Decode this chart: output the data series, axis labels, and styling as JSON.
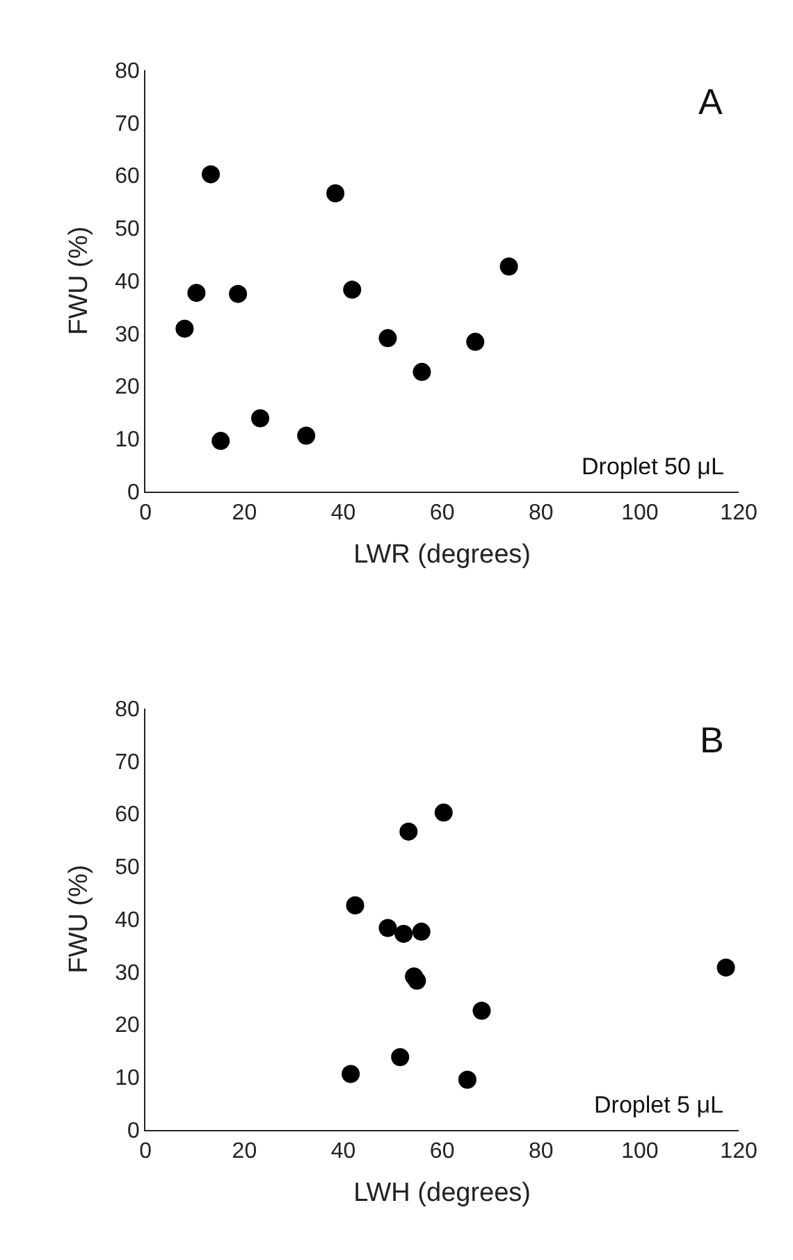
{
  "chart_data": [
    {
      "type": "scatter",
      "xlabel": "LWR (degrees)",
      "ylabel": "FWU (%)",
      "annotations": [
        "A",
        "Droplet 50 μL"
      ],
      "xlim": [
        0,
        120
      ],
      "xticks": [
        0,
        20,
        40,
        60,
        80,
        100,
        120
      ],
      "ylim": [
        0,
        80
      ],
      "yticks": [
        0,
        10,
        20,
        30,
        40,
        50,
        60,
        70,
        80
      ],
      "marker": "circle",
      "series": [
        {
          "color": "#000000",
          "x": [
            7.9,
            10.3,
            13.2,
            15.2,
            18.7,
            23.2,
            32.5,
            38.4,
            41.8,
            49.0,
            55.9,
            66.7,
            73.5
          ],
          "values": [
            30.9,
            37.7,
            60.2,
            9.6,
            37.5,
            13.9,
            10.6,
            56.6,
            38.3,
            29.1,
            22.7,
            28.4,
            42.7
          ]
        }
      ]
    },
    {
      "type": "scatter",
      "xlabel": "LWH (degrees)",
      "ylabel": "FWU (%)",
      "annotations": [
        "B",
        "Droplet 5 μL"
      ],
      "xlim": [
        0,
        120
      ],
      "xticks": [
        0,
        20,
        40,
        60,
        80,
        100,
        120
      ],
      "ylim": [
        0,
        80
      ],
      "yticks": [
        0,
        10,
        20,
        30,
        40,
        50,
        60,
        70,
        80
      ],
      "marker": "circle",
      "series": [
        {
          "color": "#000000",
          "x": [
            60.3,
            53.2,
            42.4,
            49.0,
            52.2,
            55.8,
            54.3,
            54.9,
            117.4,
            68.0,
            51.5,
            41.5,
            65.1
          ],
          "values": [
            60.2,
            56.6,
            42.6,
            38.3,
            37.2,
            37.6,
            29.1,
            28.3,
            30.8,
            22.6,
            13.8,
            10.6,
            9.5
          ]
        }
      ]
    }
  ]
}
